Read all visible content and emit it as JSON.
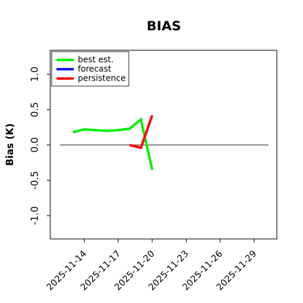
{
  "chart_data": {
    "type": "line",
    "title": "BIAS",
    "y_label": "Bias (K)",
    "x": [
      "2025-11-13",
      "2025-11-14",
      "2025-11-15",
      "2025-11-16",
      "2025-11-17",
      "2025-11-18",
      "2025-11-19",
      "2025-11-20"
    ],
    "series": [
      {
        "name": "best est.",
        "color": "#00ee00",
        "values": [
          0.18,
          0.22,
          0.21,
          0.2,
          0.21,
          0.23,
          0.36,
          -0.35
        ]
      },
      {
        "name": "forecast",
        "color": "#0000ff",
        "values": [
          null,
          null,
          null,
          null,
          null,
          null,
          null,
          null
        ]
      },
      {
        "name": "persistence",
        "color": "#ff0000",
        "values": [
          null,
          null,
          null,
          null,
          null,
          0.0,
          -0.04,
          0.42
        ]
      }
    ],
    "xlim": [
      "2025-11-11",
      "2025-12-01"
    ],
    "xticks": [
      "2025-11-14",
      "2025-11-17",
      "2025-11-20",
      "2025-11-23",
      "2025-11-26",
      "2025-11-29"
    ],
    "highlight_tick": "2025-11-20",
    "highlight_color": "#228b22",
    "ylim": [
      -1.33,
      1.34
    ],
    "yticks": [
      {
        "value": -1,
        "label": "-1.0"
      },
      {
        "value": -0.5,
        "label": "-0.5"
      },
      {
        "value": 0,
        "label": "0.0"
      },
      {
        "value": 0.5,
        "label": "0.5"
      },
      {
        "value": 1,
        "label": "1.0"
      }
    ],
    "reference_line": 0,
    "legend": "upper left"
  }
}
